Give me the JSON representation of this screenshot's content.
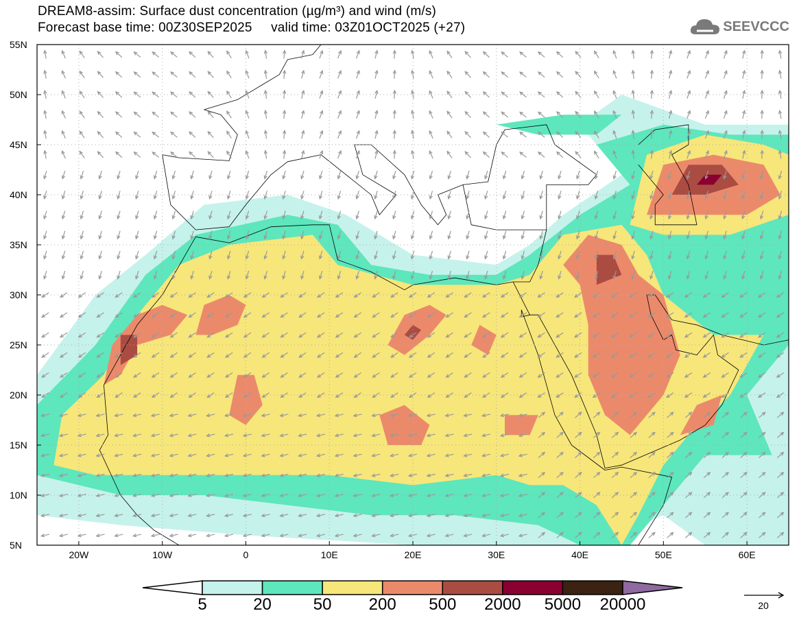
{
  "title": {
    "line1": "DREAM8-assim: Surface dust concentration (µg/m³) and wind (m/s)",
    "line2": "Forecast base time: 00Z30SEP2025     valid time: 03Z01OCT2025 (+27)"
  },
  "logo": {
    "text": "SEEVCCC",
    "icon": "cloud-icon"
  },
  "axes": {
    "lat_labels": [
      "55N",
      "50N",
      "45N",
      "40N",
      "35N",
      "30N",
      "25N",
      "20N",
      "15N",
      "10N",
      "5N"
    ],
    "lat_values": [
      55,
      50,
      45,
      40,
      35,
      30,
      25,
      20,
      15,
      10,
      5
    ],
    "lon_labels": [
      "20W",
      "10W",
      "0",
      "10E",
      "20E",
      "30E",
      "40E",
      "50E",
      "60E"
    ],
    "lon_values": [
      -20,
      -10,
      0,
      10,
      20,
      30,
      40,
      50,
      60
    ],
    "lon_range": [
      -25,
      65
    ],
    "lat_range": [
      5,
      55
    ]
  },
  "colorbar": {
    "labels": [
      "5",
      "20",
      "50",
      "200",
      "500",
      "2000",
      "5000",
      "20000"
    ],
    "colors": [
      "#c6f2ec",
      "#5ee6bd",
      "#f7e67a",
      "#eb8a6b",
      "#ab4c43",
      "#8a0030",
      "#3b2212"
    ],
    "over_color": "#8e6aa0"
  },
  "reference_vector": {
    "label": "20"
  }
}
